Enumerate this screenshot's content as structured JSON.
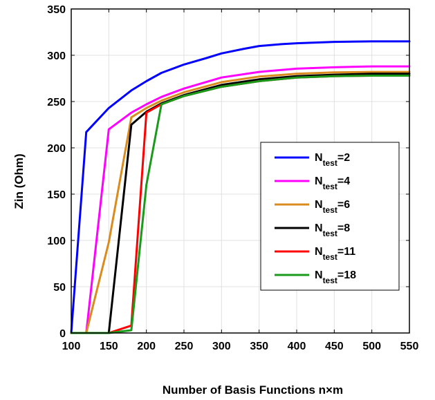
{
  "chart_data": {
    "type": "line",
    "title": "",
    "xlabel": "Number of Basis Functions n×m",
    "ylabel": "Zin (Ohm)",
    "xlim": [
      100,
      550
    ],
    "ylim": [
      0,
      350
    ],
    "xticks": [
      100,
      150,
      200,
      250,
      300,
      350,
      400,
      450,
      500,
      550
    ],
    "yticks": [
      0,
      50,
      100,
      150,
      200,
      250,
      300,
      350
    ],
    "grid": true,
    "legend_position": "right",
    "series": [
      {
        "name": "N_test=2",
        "label_main": "N",
        "label_sub": "test",
        "label_suffix": "=2",
        "color": "#0000ff",
        "x": [
          100,
          120,
          150,
          180,
          200,
          220,
          250,
          280,
          300,
          330,
          350,
          380,
          400,
          450,
          500,
          550
        ],
        "y": [
          0,
          217,
          243,
          262,
          272,
          281,
          290,
          297,
          302,
          307,
          310,
          312,
          313,
          314.5,
          315,
          315
        ]
      },
      {
        "name": "N_test=4",
        "label_main": "N",
        "label_sub": "test",
        "label_suffix": "=4",
        "color": "#ff00ff",
        "x": [
          100,
          120,
          150,
          180,
          200,
          220,
          250,
          300,
          350,
          400,
          450,
          500,
          550
        ],
        "y": [
          0,
          0,
          220,
          238,
          247,
          255,
          264,
          276,
          282,
          285.5,
          287,
          288,
          288
        ]
      },
      {
        "name": "N_test=6",
        "label_main": "N",
        "label_sub": "test",
        "label_suffix": "=6",
        "color": "#d98b1e",
        "x": [
          100,
          120,
          150,
          180,
          200,
          220,
          250,
          300,
          350,
          400,
          450,
          500,
          550
        ],
        "y": [
          0,
          0,
          98,
          233,
          243,
          251,
          260,
          271,
          277,
          280,
          281.5,
          282,
          282
        ]
      },
      {
        "name": "N_test=8",
        "label_main": "N",
        "label_sub": "test",
        "label_suffix": "=8",
        "color": "#000000",
        "x": [
          100,
          150,
          180,
          200,
          220,
          250,
          300,
          350,
          400,
          450,
          500,
          550
        ],
        "y": [
          0,
          0,
          225,
          239,
          248,
          257,
          268,
          274,
          277.5,
          279,
          280,
          280
        ]
      },
      {
        "name": "N_test=11",
        "label_main": "N",
        "label_sub": "test",
        "label_suffix": "=11",
        "color": "#ff0000",
        "x": [
          100,
          150,
          180,
          200,
          220,
          250,
          300,
          350,
          400,
          450,
          500,
          550
        ],
        "y": [
          0,
          0,
          8,
          238,
          247,
          256,
          266,
          272,
          276,
          277.5,
          278,
          278
        ]
      },
      {
        "name": "N_test=18",
        "label_main": "N",
        "label_sub": "test",
        "label_suffix": "=18",
        "color": "#1a9a1a",
        "x": [
          100,
          150,
          180,
          200,
          220,
          250,
          300,
          350,
          400,
          450,
          500,
          550
        ],
        "y": [
          0,
          0,
          3,
          160,
          247,
          256,
          266,
          272,
          276,
          277.5,
          278,
          278
        ]
      }
    ]
  }
}
